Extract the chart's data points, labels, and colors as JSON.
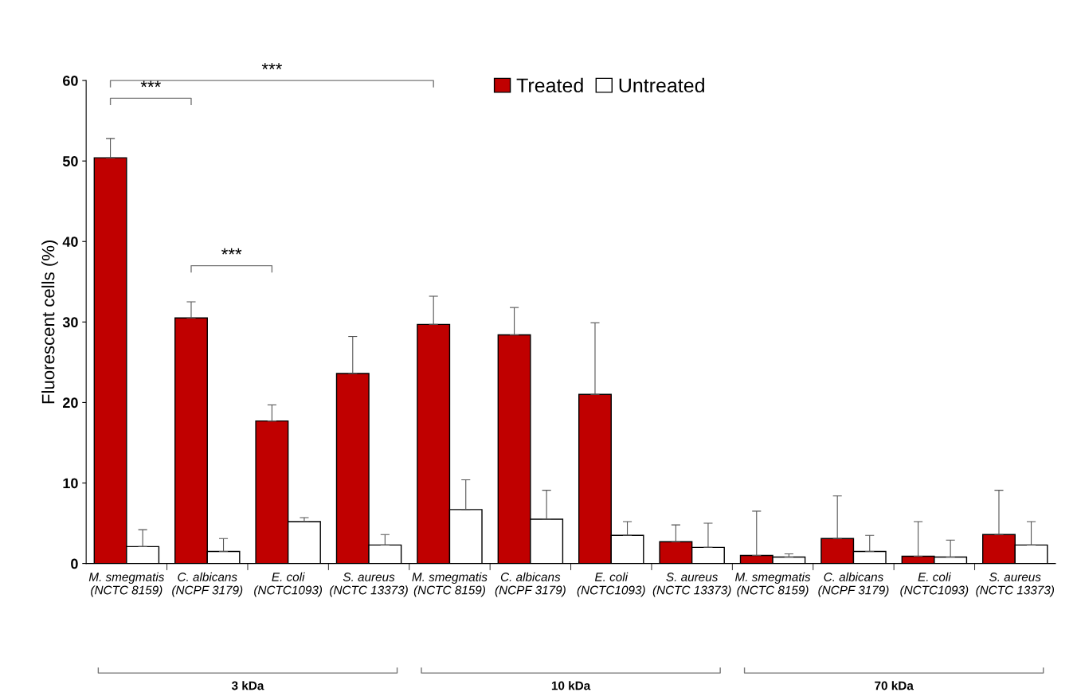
{
  "chart_data": {
    "type": "bar",
    "ylabel": "Fluorescent cells (%)",
    "categories": [
      "M. smegmatis\n(NCTC 8159)",
      "C. albicans\n(NCPF 3179)",
      "E. coli\n(NCTC1093)",
      "S. aureus\n(NCTC 13373)",
      "M. smegmatis\n(NCTC 8159)",
      "C. albicans\n(NCPF 3179)",
      "E. coli\n(NCTC1093)",
      "S. aureus\n(NCTC 13373)",
      "M. smegmatis\n(NCTC 8159)",
      "C. albicans\n(NCPF 3179)",
      "E. coli\n(NCTC1093)",
      "S. aureus\n(NCTC 13373)"
    ],
    "series": [
      {
        "name": "Treated",
        "color": "#c00000",
        "values": [
          50.4,
          30.5,
          17.7,
          23.6,
          29.7,
          28.4,
          21.0,
          2.7,
          1.0,
          3.1,
          0.9,
          3.6
        ],
        "errors": [
          [
            50.4,
            52.8
          ],
          [
            30.5,
            32.5
          ],
          [
            17.7,
            19.7
          ],
          [
            23.6,
            28.2
          ],
          [
            29.7,
            33.2
          ],
          [
            28.4,
            31.8
          ],
          [
            21.0,
            29.9
          ],
          [
            2.7,
            4.8
          ],
          [
            1.0,
            6.5
          ],
          [
            3.1,
            8.4
          ],
          [
            0.9,
            5.2
          ],
          [
            3.6,
            9.1
          ]
        ]
      },
      {
        "name": "Untreated",
        "color": "#ffffff",
        "values": [
          2.1,
          1.5,
          5.2,
          2.3,
          6.7,
          5.5,
          3.5,
          2.0,
          0.8,
          1.5,
          0.8,
          2.3
        ],
        "errors": [
          [
            2.1,
            4.2
          ],
          [
            1.5,
            3.1
          ],
          [
            5.2,
            5.7
          ],
          [
            2.3,
            3.6
          ],
          [
            6.7,
            10.4
          ],
          [
            5.5,
            9.1
          ],
          [
            3.5,
            5.2
          ],
          [
            2.0,
            5.0
          ],
          [
            0.8,
            1.2
          ],
          [
            1.5,
            3.5
          ],
          [
            0.8,
            2.9
          ],
          [
            2.3,
            5.2
          ]
        ]
      }
    ],
    "ylim": [
      0,
      60
    ],
    "yticks": [
      0,
      10,
      20,
      30,
      40,
      50,
      60
    ],
    "legend": "top",
    "grid": false,
    "annotations": [
      "***",
      "***",
      "***",
      "3 kDa",
      "10 kDa",
      "70 kDa"
    ]
  }
}
